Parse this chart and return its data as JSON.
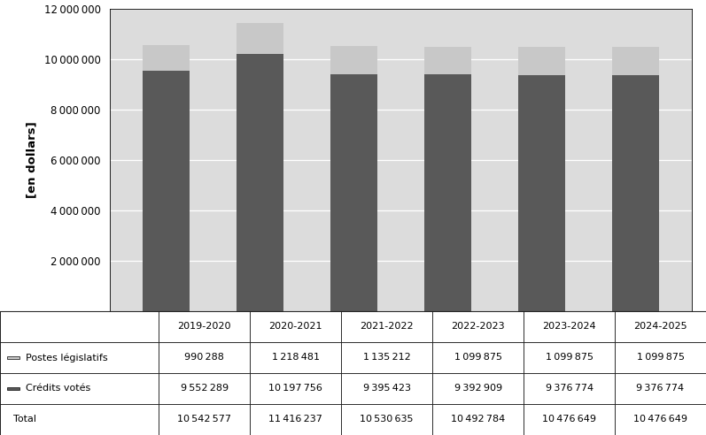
{
  "years": [
    "2019-2020",
    "2020-2021",
    "2021-2022",
    "2022-2023",
    "2023-2024",
    "2024-2025"
  ],
  "postes_legislatifs": [
    990288,
    1218481,
    1135212,
    1099875,
    1099875,
    1099875
  ],
  "credits_votes": [
    9552289,
    10197756,
    9395423,
    9392909,
    9376774,
    9376774
  ],
  "totals": [
    10542577,
    11416237,
    10530635,
    10492784,
    10476649,
    10476649
  ],
  "color_postes": "#c8c8c8",
  "color_credits": "#595959",
  "ylabel": "[en dollars]",
  "ylim": [
    0,
    12000000
  ],
  "yticks": [
    2000000,
    4000000,
    6000000,
    8000000,
    10000000,
    12000000
  ],
  "plot_bg_color": "#dcdcdc",
  "fig_bg_color": "#ffffff",
  "legend_label_postes": "Postes législatifs",
  "legend_label_credits": "Crédits votés",
  "table_row_total": "Total",
  "bar_width": 0.5
}
